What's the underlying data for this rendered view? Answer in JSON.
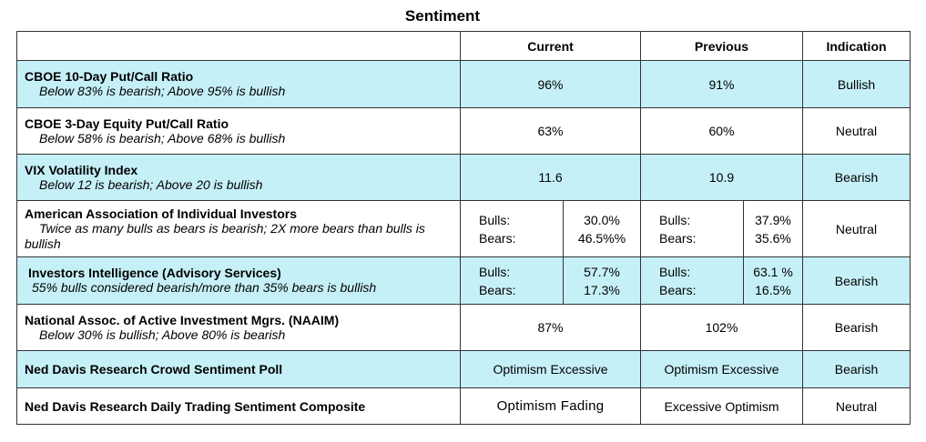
{
  "title": "Sentiment",
  "headers": {
    "indicator": "",
    "current": "Current",
    "previous": "Previous",
    "indication": "Indication"
  },
  "rows": [
    {
      "name": "CBOE 10-Day Put/Call Ratio",
      "desc": "Below 83% is bearish; Above 95% is bullish",
      "current": "96%",
      "previous": "91%",
      "indication": "Bullish",
      "shaded": true
    },
    {
      "name": "CBOE 3-Day Equity Put/Call Ratio",
      "desc": "Below 58% is bearish; Above 68% is bullish",
      "current": "63%",
      "previous": "60%",
      "indication": "Neutral",
      "shaded": false
    },
    {
      "name": "VIX Volatility Index",
      "desc": "Below 12 is bearish; Above 20 is bullish",
      "current": "11.6",
      "previous": "10.9",
      "indication": "Bearish",
      "shaded": true
    },
    {
      "name": "American Association of Individual Investors",
      "desc": "Twice as many bulls as bears is bearish; 2X more bears than bulls is bullish",
      "bulls_label": "Bulls:",
      "bears_label": "Bears:",
      "current_bulls": "30.0%",
      "current_bears": "46.5%%",
      "previous_bulls": "37.9%",
      "previous_bears": "35.6%",
      "indication": "Neutral",
      "shaded": false
    },
    {
      "name": "Investors Intelligence (Advisory Services)",
      "desc": "55% bulls considered bearish/more than 35% bears is bullish",
      "bulls_label": "Bulls:",
      "bears_label": "Bears:",
      "current_bulls": "57.7%",
      "current_bears": "17.3%",
      "previous_bulls": "63.1 %",
      "previous_bears": "16.5%",
      "indication": "Bearish",
      "shaded": true
    },
    {
      "name": "National Assoc. of Active Investment Mgrs. (NAAIM)",
      "desc": "Below 30% is bullish; Above 80% is bearish",
      "current": "87%",
      "previous": "102%",
      "indication": "Bearish",
      "shaded": false
    },
    {
      "name": "Ned Davis Research Crowd Sentiment Poll",
      "current": "Optimism Excessive",
      "previous": "Optimism Excessive",
      "indication": "Bearish",
      "shaded": true
    },
    {
      "name": "Ned Davis Research Daily Trading Sentiment Composite",
      "current": "Optimism Fading",
      "previous": "Excessive Optimism",
      "indication": "Neutral",
      "shaded": false
    }
  ]
}
